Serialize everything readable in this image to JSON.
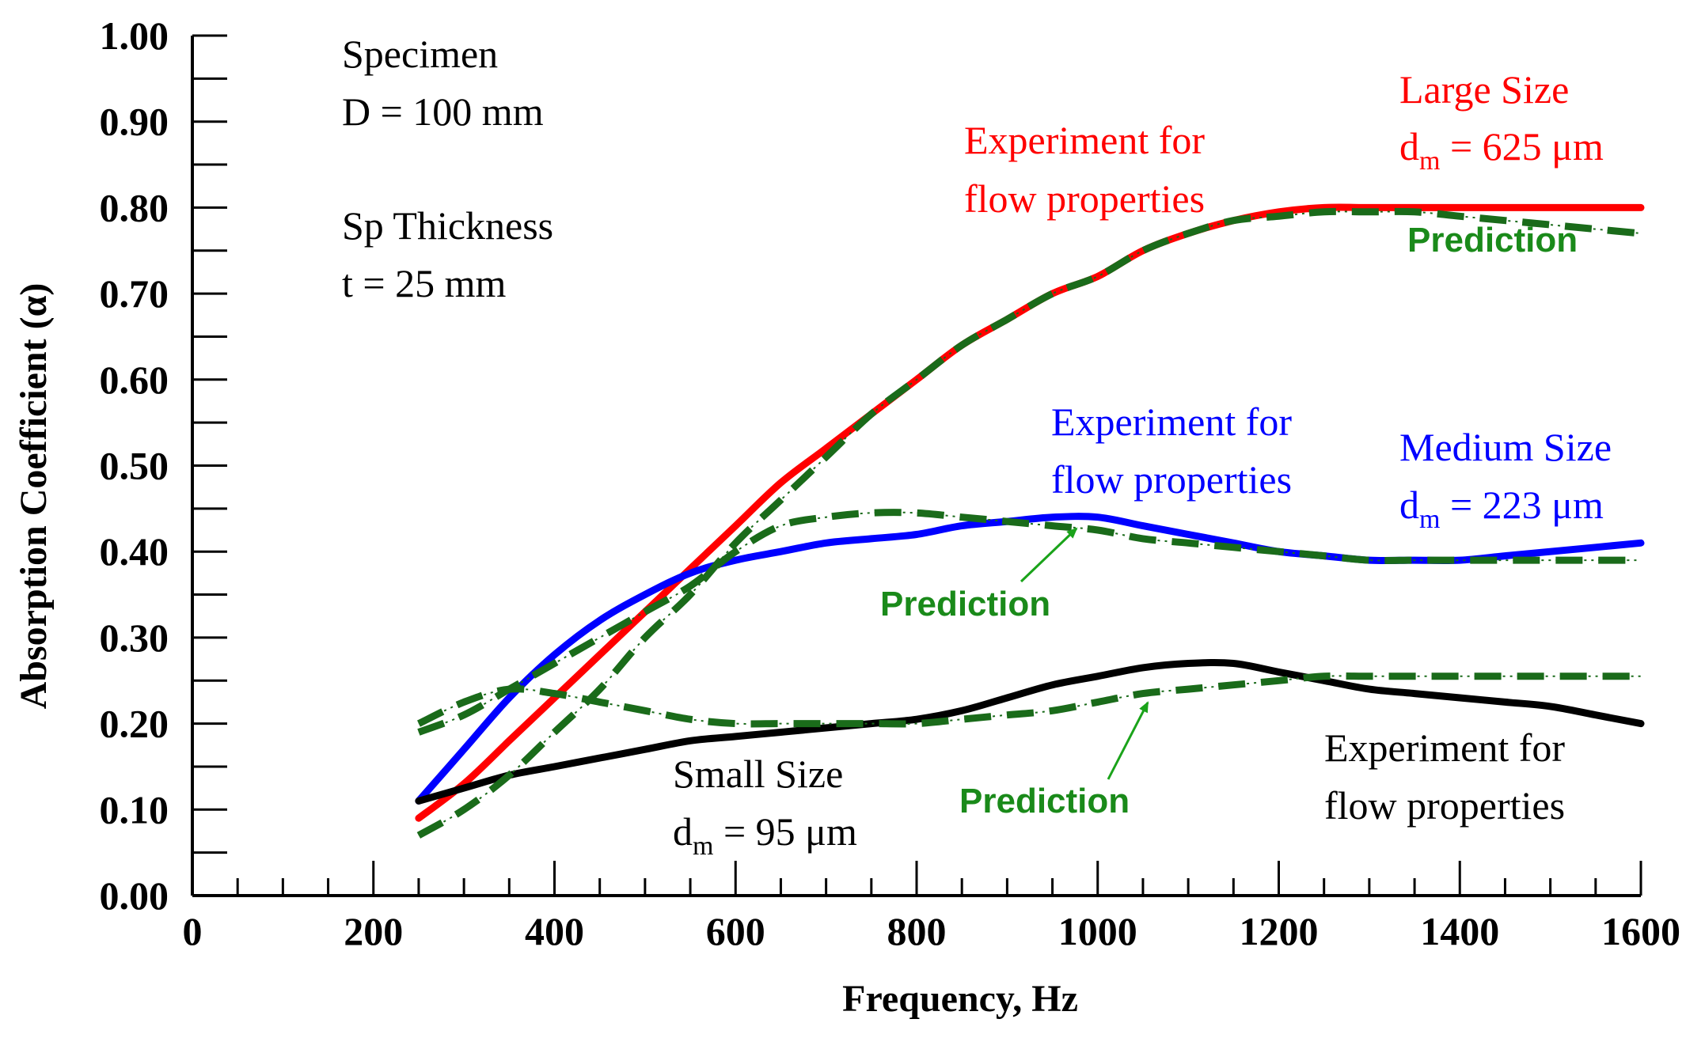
{
  "chart_data": {
    "type": "line",
    "xlabel": "Frequency, Hz",
    "ylabel": "Absorption Coefficient (α)",
    "xlim": [
      0,
      1600
    ],
    "ylim": [
      0,
      1
    ],
    "x_ticks": [
      "0",
      "200",
      "400",
      "600",
      "800",
      "1000",
      "1200",
      "1400",
      "1600"
    ],
    "y_ticks": [
      "0.00",
      "0.10",
      "0.20",
      "0.30",
      "0.40",
      "0.50",
      "0.60",
      "0.70",
      "0.80",
      "0.90",
      "1.00"
    ],
    "grid": false,
    "colors": {
      "large": "#ff0000",
      "medium": "#0000ff",
      "small": "#000000",
      "prediction": "#1a6b1a",
      "arrow": "#1aa31a"
    },
    "series": [
      {
        "id": "large-exp",
        "color": "#ff0000",
        "style": "solid",
        "x": [
          250,
          300,
          350,
          400,
          450,
          500,
          550,
          600,
          650,
          700,
          750,
          800,
          850,
          900,
          950,
          1000,
          1050,
          1100,
          1150,
          1200,
          1250,
          1300,
          1350,
          1400,
          1450,
          1500,
          1550,
          1600
        ],
        "y": [
          0.09,
          0.13,
          0.18,
          0.23,
          0.28,
          0.33,
          0.38,
          0.43,
          0.48,
          0.52,
          0.56,
          0.6,
          0.64,
          0.67,
          0.7,
          0.72,
          0.75,
          0.77,
          0.785,
          0.795,
          0.8,
          0.8,
          0.8,
          0.8,
          0.8,
          0.8,
          0.8,
          0.8
        ]
      },
      {
        "id": "large-pred",
        "color": "#1a6b1a",
        "style": "dashed",
        "x": [
          250,
          300,
          350,
          400,
          450,
          500,
          550,
          600,
          650,
          700,
          750,
          800,
          850,
          900,
          950,
          1000,
          1050,
          1100,
          1150,
          1200,
          1250,
          1300,
          1350,
          1400,
          1450,
          1500,
          1550,
          1600
        ],
        "y": [
          0.07,
          0.1,
          0.14,
          0.19,
          0.24,
          0.3,
          0.35,
          0.41,
          0.46,
          0.51,
          0.56,
          0.6,
          0.64,
          0.67,
          0.7,
          0.72,
          0.75,
          0.77,
          0.785,
          0.79,
          0.795,
          0.795,
          0.795,
          0.79,
          0.785,
          0.78,
          0.775,
          0.77
        ]
      },
      {
        "id": "medium-exp",
        "color": "#0000ff",
        "style": "solid",
        "x": [
          250,
          300,
          350,
          400,
          450,
          500,
          550,
          600,
          650,
          700,
          750,
          800,
          850,
          900,
          950,
          1000,
          1050,
          1100,
          1150,
          1200,
          1250,
          1300,
          1350,
          1400,
          1450,
          1500,
          1550,
          1600
        ],
        "y": [
          0.11,
          0.17,
          0.23,
          0.28,
          0.32,
          0.35,
          0.375,
          0.39,
          0.4,
          0.41,
          0.415,
          0.42,
          0.43,
          0.435,
          0.44,
          0.44,
          0.43,
          0.42,
          0.41,
          0.4,
          0.395,
          0.39,
          0.39,
          0.39,
          0.395,
          0.4,
          0.405,
          0.41
        ]
      },
      {
        "id": "medium-pred",
        "color": "#1a6b1a",
        "style": "dashed",
        "x": [
          250,
          300,
          350,
          400,
          450,
          500,
          550,
          600,
          650,
          700,
          750,
          800,
          850,
          900,
          950,
          1000,
          1050,
          1100,
          1150,
          1200,
          1250,
          1300,
          1350,
          1400,
          1450,
          1500,
          1550,
          1600
        ],
        "y": [
          0.19,
          0.21,
          0.24,
          0.27,
          0.3,
          0.33,
          0.36,
          0.4,
          0.43,
          0.44,
          0.445,
          0.445,
          0.44,
          0.435,
          0.43,
          0.425,
          0.415,
          0.41,
          0.405,
          0.4,
          0.395,
          0.39,
          0.39,
          0.39,
          0.39,
          0.39,
          0.39,
          0.39
        ]
      },
      {
        "id": "small-exp",
        "color": "#000000",
        "style": "solid",
        "x": [
          250,
          300,
          350,
          400,
          450,
          500,
          550,
          600,
          650,
          700,
          750,
          800,
          850,
          900,
          950,
          1000,
          1050,
          1100,
          1150,
          1200,
          1250,
          1300,
          1350,
          1400,
          1450,
          1500,
          1550,
          1600
        ],
        "y": [
          0.11,
          0.125,
          0.14,
          0.15,
          0.16,
          0.17,
          0.18,
          0.185,
          0.19,
          0.195,
          0.2,
          0.205,
          0.215,
          0.23,
          0.245,
          0.255,
          0.265,
          0.27,
          0.27,
          0.26,
          0.25,
          0.24,
          0.235,
          0.23,
          0.225,
          0.22,
          0.21,
          0.2
        ]
      },
      {
        "id": "small-pred",
        "color": "#1a6b1a",
        "style": "dashed",
        "x": [
          250,
          300,
          350,
          400,
          450,
          500,
          550,
          600,
          650,
          700,
          750,
          800,
          850,
          900,
          950,
          1000,
          1050,
          1100,
          1150,
          1200,
          1250,
          1300,
          1350,
          1400,
          1450,
          1500,
          1550,
          1600
        ],
        "y": [
          0.2,
          0.225,
          0.24,
          0.235,
          0.225,
          0.215,
          0.205,
          0.2,
          0.2,
          0.2,
          0.2,
          0.2,
          0.205,
          0.21,
          0.215,
          0.225,
          0.235,
          0.24,
          0.245,
          0.25,
          0.255,
          0.255,
          0.255,
          0.255,
          0.255,
          0.255,
          0.255,
          0.255
        ]
      }
    ],
    "annotations": {
      "specimen": "Specimen",
      "diameter": "D = 100 mm",
      "thickness_label": "Sp Thickness",
      "thickness_value": "t = 25 mm",
      "large_size": "Large Size",
      "large_dm_prefix": "d",
      "large_dm_sub": "m",
      "large_dm_value": " = 625 μm",
      "large_exp_1": "Experiment for",
      "large_exp_2": "flow properties",
      "large_pred": "Prediction",
      "medium_size": "Medium Size",
      "medium_dm_prefix": "d",
      "medium_dm_sub": "m",
      "medium_dm_value": " = 223 μm",
      "medium_exp_1": "Experiment for",
      "medium_exp_2": "flow properties",
      "medium_pred": "Prediction",
      "small_size": "Small Size",
      "small_dm_prefix": "d",
      "small_dm_sub": "m",
      "small_dm_value": " = 95 μm",
      "small_exp_1": "Experiment for",
      "small_exp_2": "flow properties",
      "small_pred": "Prediction"
    }
  }
}
